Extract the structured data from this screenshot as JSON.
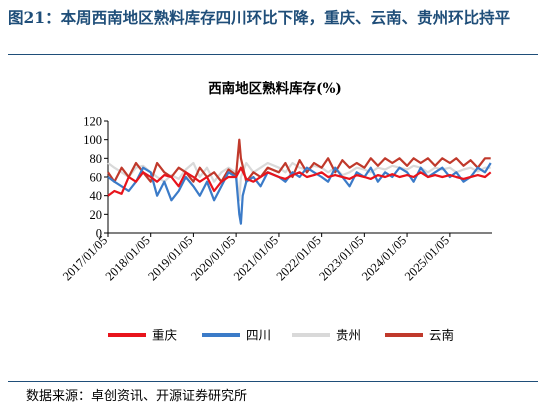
{
  "figure_title": "图21：本周西南地区熟料库存四川环比下降，重庆、云南、贵州环比持平",
  "source": "数据来源：卓创资讯、开源证券研究所",
  "colors": {
    "chongqing": "#e8141c",
    "sichuan": "#3b7bc8",
    "guizhou": "#d9d9d9",
    "yunnan": "#c0392b",
    "frame": "#1f4e79"
  },
  "chart_data": {
    "type": "line",
    "title": "西南地区熟料库存(%)",
    "xlabel": "",
    "ylabel": "",
    "ylim": [
      0,
      120
    ],
    "yticks": [
      0,
      20,
      40,
      60,
      80,
      100,
      120
    ],
    "xlim": [
      "2017-01-05",
      "2025-12-31"
    ],
    "xtick_labels": [
      "2017/01/05",
      "2018/01/05",
      "2019/01/05",
      "2020/01/05",
      "2021/01/05",
      "2022/01/05",
      "2023/01/05",
      "2024/01/05",
      "2025/01/05"
    ],
    "legend_position": "bottom",
    "grid": false,
    "series": [
      {
        "name": "重庆",
        "color": "#e8141c",
        "points": [
          [
            "2017-01-05",
            40
          ],
          [
            "2017-03-01",
            45
          ],
          [
            "2017-05-01",
            42
          ],
          [
            "2017-07-01",
            60
          ],
          [
            "2017-09-01",
            55
          ],
          [
            "2017-11-01",
            65
          ],
          [
            "2018-01-05",
            60
          ],
          [
            "2018-03-01",
            55
          ],
          [
            "2018-05-01",
            62
          ],
          [
            "2018-07-01",
            60
          ],
          [
            "2018-09-01",
            50
          ],
          [
            "2018-11-01",
            65
          ],
          [
            "2019-01-05",
            60
          ],
          [
            "2019-03-01",
            55
          ],
          [
            "2019-05-01",
            60
          ],
          [
            "2019-07-01",
            45
          ],
          [
            "2019-09-01",
            55
          ],
          [
            "2019-11-01",
            60
          ],
          [
            "2020-01-05",
            60
          ],
          [
            "2020-02-15",
            70
          ],
          [
            "2020-04-01",
            58
          ],
          [
            "2020-06-01",
            55
          ],
          [
            "2020-08-01",
            60
          ],
          [
            "2020-10-01",
            65
          ],
          [
            "2021-01-05",
            60
          ],
          [
            "2021-03-01",
            58
          ],
          [
            "2021-05-01",
            62
          ],
          [
            "2021-07-01",
            65
          ],
          [
            "2021-09-01",
            60
          ],
          [
            "2021-11-01",
            62
          ],
          [
            "2022-01-05",
            65
          ],
          [
            "2022-03-01",
            60
          ],
          [
            "2022-05-01",
            62
          ],
          [
            "2022-07-01",
            60
          ],
          [
            "2022-09-01",
            58
          ],
          [
            "2022-11-01",
            62
          ],
          [
            "2023-01-05",
            60
          ],
          [
            "2023-03-01",
            58
          ],
          [
            "2023-05-01",
            62
          ],
          [
            "2023-07-01",
            60
          ],
          [
            "2023-09-01",
            63
          ],
          [
            "2023-11-01",
            60
          ],
          [
            "2024-01-05",
            62
          ],
          [
            "2024-03-01",
            60
          ],
          [
            "2024-05-01",
            65
          ],
          [
            "2024-07-01",
            60
          ],
          [
            "2024-09-01",
            62
          ],
          [
            "2024-11-01",
            60
          ],
          [
            "2025-01-05",
            62
          ],
          [
            "2025-03-01",
            60
          ],
          [
            "2025-05-01",
            58
          ],
          [
            "2025-07-01",
            60
          ],
          [
            "2025-09-01",
            62
          ],
          [
            "2025-11-01",
            60
          ],
          [
            "2025-12-20",
            65
          ]
        ]
      },
      {
        "name": "四川",
        "color": "#3b7bc8",
        "points": [
          [
            "2017-01-05",
            60
          ],
          [
            "2017-03-01",
            55
          ],
          [
            "2017-05-01",
            50
          ],
          [
            "2017-07-01",
            45
          ],
          [
            "2017-09-01",
            55
          ],
          [
            "2017-11-01",
            70
          ],
          [
            "2018-01-05",
            65
          ],
          [
            "2018-03-01",
            40
          ],
          [
            "2018-05-01",
            55
          ],
          [
            "2018-07-01",
            35
          ],
          [
            "2018-09-01",
            45
          ],
          [
            "2018-11-01",
            60
          ],
          [
            "2019-01-05",
            50
          ],
          [
            "2019-03-01",
            40
          ],
          [
            "2019-05-01",
            55
          ],
          [
            "2019-07-01",
            35
          ],
          [
            "2019-09-01",
            50
          ],
          [
            "2019-11-01",
            65
          ],
          [
            "2020-01-05",
            60
          ],
          [
            "2020-02-01",
            20
          ],
          [
            "2020-02-15",
            10
          ],
          [
            "2020-03-01",
            40
          ],
          [
            "2020-04-01",
            55
          ],
          [
            "2020-06-01",
            60
          ],
          [
            "2020-08-01",
            50
          ],
          [
            "2020-10-01",
            65
          ],
          [
            "2021-01-05",
            60
          ],
          [
            "2021-03-01",
            55
          ],
          [
            "2021-05-01",
            65
          ],
          [
            "2021-07-01",
            60
          ],
          [
            "2021-09-01",
            70
          ],
          [
            "2021-11-01",
            65
          ],
          [
            "2022-01-05",
            60
          ],
          [
            "2022-03-01",
            55
          ],
          [
            "2022-05-01",
            70
          ],
          [
            "2022-07-01",
            60
          ],
          [
            "2022-09-01",
            50
          ],
          [
            "2022-11-01",
            65
          ],
          [
            "2023-01-05",
            60
          ],
          [
            "2023-03-01",
            70
          ],
          [
            "2023-05-01",
            55
          ],
          [
            "2023-07-01",
            65
          ],
          [
            "2023-09-01",
            60
          ],
          [
            "2023-11-01",
            70
          ],
          [
            "2024-01-05",
            65
          ],
          [
            "2024-03-01",
            55
          ],
          [
            "2024-05-01",
            70
          ],
          [
            "2024-07-01",
            60
          ],
          [
            "2024-09-01",
            65
          ],
          [
            "2024-11-01",
            70
          ],
          [
            "2025-01-05",
            60
          ],
          [
            "2025-03-01",
            65
          ],
          [
            "2025-05-01",
            55
          ],
          [
            "2025-07-01",
            60
          ],
          [
            "2025-09-01",
            70
          ],
          [
            "2025-11-01",
            65
          ],
          [
            "2025-12-20",
            75
          ]
        ]
      },
      {
        "name": "贵州",
        "color": "#d9d9d9",
        "points": [
          [
            "2017-01-05",
            75
          ],
          [
            "2017-03-01",
            70
          ],
          [
            "2017-05-01",
            65
          ],
          [
            "2017-07-01",
            60
          ],
          [
            "2017-09-01",
            70
          ],
          [
            "2017-11-01",
            72
          ],
          [
            "2018-01-05",
            65
          ],
          [
            "2018-03-01",
            60
          ],
          [
            "2018-05-01",
            55
          ],
          [
            "2018-07-01",
            62
          ],
          [
            "2018-09-01",
            58
          ],
          [
            "2018-11-01",
            68
          ],
          [
            "2019-01-05",
            75
          ],
          [
            "2019-03-01",
            60
          ],
          [
            "2019-05-01",
            70
          ],
          [
            "2019-07-01",
            55
          ],
          [
            "2019-09-01",
            65
          ],
          [
            "2019-11-01",
            70
          ],
          [
            "2020-01-05",
            65
          ],
          [
            "2020-02-01",
            35
          ],
          [
            "2020-02-15",
            60
          ],
          [
            "2020-04-01",
            75
          ],
          [
            "2020-06-01",
            65
          ],
          [
            "2020-08-01",
            70
          ],
          [
            "2020-10-01",
            75
          ],
          [
            "2021-01-05",
            70
          ],
          [
            "2021-03-01",
            65
          ],
          [
            "2021-05-01",
            75
          ],
          [
            "2021-07-01",
            70
          ],
          [
            "2021-09-01",
            68
          ],
          [
            "2021-11-01",
            72
          ],
          [
            "2022-01-05",
            70
          ],
          [
            "2022-03-01",
            65
          ],
          [
            "2022-05-01",
            70
          ],
          [
            "2022-07-01",
            62
          ],
          [
            "2022-09-01",
            65
          ],
          [
            "2022-11-01",
            70
          ],
          [
            "2023-01-05",
            68
          ],
          [
            "2023-03-01",
            65
          ],
          [
            "2023-05-01",
            70
          ],
          [
            "2023-07-01",
            68
          ],
          [
            "2023-09-01",
            72
          ],
          [
            "2023-11-01",
            70
          ],
          [
            "2024-01-05",
            68
          ],
          [
            "2024-03-01",
            72
          ],
          [
            "2024-05-01",
            70
          ],
          [
            "2024-07-01",
            65
          ],
          [
            "2024-09-01",
            70
          ],
          [
            "2024-11-01",
            68
          ],
          [
            "2025-01-05",
            70
          ],
          [
            "2025-03-01",
            65
          ],
          [
            "2025-05-01",
            68
          ],
          [
            "2025-07-01",
            70
          ],
          [
            "2025-09-01",
            66
          ],
          [
            "2025-11-01",
            70
          ],
          [
            "2025-12-20",
            70
          ]
        ]
      },
      {
        "name": "云南",
        "color": "#c0392b",
        "points": [
          [
            "2017-01-05",
            65
          ],
          [
            "2017-03-01",
            55
          ],
          [
            "2017-05-01",
            70
          ],
          [
            "2017-07-01",
            60
          ],
          [
            "2017-09-01",
            75
          ],
          [
            "2017-11-01",
            65
          ],
          [
            "2018-01-05",
            55
          ],
          [
            "2018-03-01",
            75
          ],
          [
            "2018-05-01",
            65
          ],
          [
            "2018-07-01",
            60
          ],
          [
            "2018-09-01",
            70
          ],
          [
            "2018-11-01",
            65
          ],
          [
            "2019-01-05",
            55
          ],
          [
            "2019-03-01",
            70
          ],
          [
            "2019-05-01",
            60
          ],
          [
            "2019-07-01",
            65
          ],
          [
            "2019-09-01",
            55
          ],
          [
            "2019-11-01",
            68
          ],
          [
            "2020-01-05",
            62
          ],
          [
            "2020-02-01",
            100
          ],
          [
            "2020-02-15",
            80
          ],
          [
            "2020-04-01",
            55
          ],
          [
            "2020-06-01",
            65
          ],
          [
            "2020-08-01",
            60
          ],
          [
            "2020-10-01",
            70
          ],
          [
            "2021-01-05",
            65
          ],
          [
            "2021-03-01",
            75
          ],
          [
            "2021-05-01",
            60
          ],
          [
            "2021-07-01",
            78
          ],
          [
            "2021-09-01",
            65
          ],
          [
            "2021-11-01",
            75
          ],
          [
            "2022-01-05",
            70
          ],
          [
            "2022-03-01",
            80
          ],
          [
            "2022-05-01",
            65
          ],
          [
            "2022-07-01",
            78
          ],
          [
            "2022-09-01",
            70
          ],
          [
            "2022-11-01",
            75
          ],
          [
            "2023-01-05",
            70
          ],
          [
            "2023-03-01",
            80
          ],
          [
            "2023-05-01",
            72
          ],
          [
            "2023-07-01",
            80
          ],
          [
            "2023-09-01",
            75
          ],
          [
            "2023-11-01",
            80
          ],
          [
            "2024-01-05",
            72
          ],
          [
            "2024-03-01",
            80
          ],
          [
            "2024-05-01",
            75
          ],
          [
            "2024-07-01",
            80
          ],
          [
            "2024-09-01",
            72
          ],
          [
            "2024-11-01",
            80
          ],
          [
            "2025-01-05",
            75
          ],
          [
            "2025-03-01",
            80
          ],
          [
            "2025-05-01",
            72
          ],
          [
            "2025-07-01",
            78
          ],
          [
            "2025-09-01",
            70
          ],
          [
            "2025-11-01",
            80
          ],
          [
            "2025-12-20",
            80
          ]
        ]
      }
    ]
  }
}
